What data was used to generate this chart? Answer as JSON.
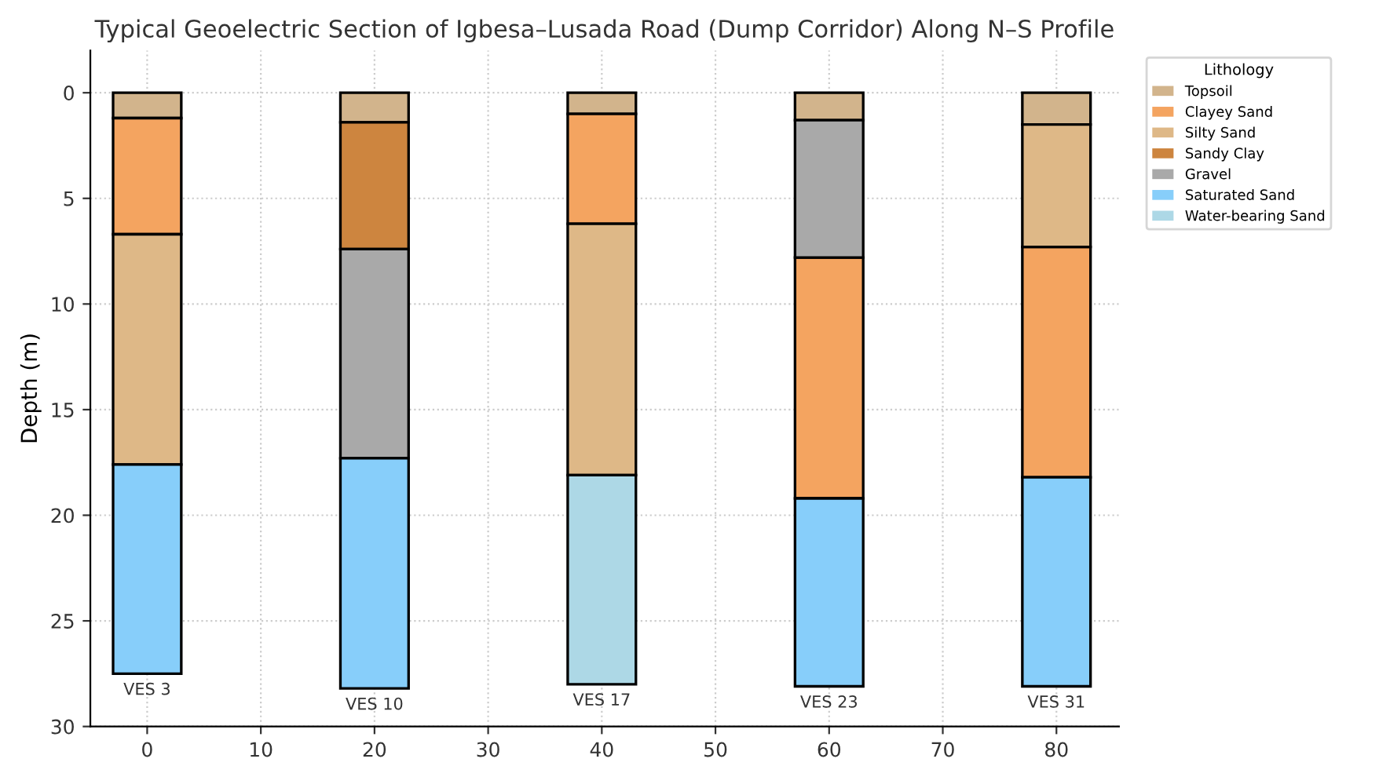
{
  "chart_data": {
    "type": "bar",
    "title": "Typical Geoelectric Section of Igbesa–Lusada Road (Dump Corridor) Along N–S Profile",
    "ylabel": "Depth (m)",
    "legend_title": "Lithology",
    "x": [
      0,
      20,
      40,
      60,
      80
    ],
    "series": [
      {
        "name": "Topsoil",
        "color": "#d2b48c",
        "base": [
          0,
          0,
          0,
          0,
          0
        ],
        "values": [
          1.2,
          1.4,
          1.0,
          1.3,
          1.5
        ]
      },
      {
        "name": "Clayey Sand",
        "color": "#f4a460",
        "base": [
          1.2,
          null,
          1.0,
          7.8,
          7.3
        ],
        "values": [
          5.5,
          null,
          5.2,
          11.4,
          10.9
        ]
      },
      {
        "name": "Silty Sand",
        "color": "#deb887",
        "base": [
          6.7,
          null,
          6.2,
          null,
          1.5
        ],
        "values": [
          10.9,
          null,
          11.9,
          null,
          5.8
        ]
      },
      {
        "name": "Sandy Clay",
        "color": "#cd853f",
        "base": [
          null,
          1.4,
          null,
          null,
          null
        ],
        "values": [
          null,
          6.0,
          null,
          null,
          null
        ]
      },
      {
        "name": "Gravel",
        "color": "#a9a9a9",
        "base": [
          null,
          7.4,
          null,
          1.3,
          null
        ],
        "values": [
          null,
          9.9,
          null,
          6.5,
          null
        ]
      },
      {
        "name": "Saturated Sand",
        "color": "#87cefa",
        "base": [
          17.6,
          17.3,
          null,
          19.2,
          18.2
        ],
        "values": [
          9.9,
          10.9,
          null,
          8.9,
          9.9
        ]
      },
      {
        "name": "Water-bearing Sand",
        "color": "#add8e6",
        "base": [
          null,
          null,
          18.1,
          null,
          null
        ],
        "values": [
          null,
          null,
          9.9,
          null,
          null
        ]
      }
    ],
    "annotations": [
      {
        "text": "VES 3",
        "x": 0,
        "y": 27.5
      },
      {
        "text": "VES 10",
        "x": 20,
        "y": 28.2
      },
      {
        "text": "VES 17",
        "x": 40,
        "y": 28.0
      },
      {
        "text": "VES 23",
        "x": 60,
        "y": 28.1
      },
      {
        "text": "VES 31",
        "x": 80,
        "y": 28.1
      }
    ],
    "xlim": [
      -5,
      85.5
    ],
    "xticks": [
      0,
      10,
      20,
      30,
      40,
      50,
      60,
      70,
      80
    ],
    "ylim": [
      30,
      -2
    ],
    "yticks": [
      0,
      5,
      10,
      15,
      20,
      25,
      30
    ],
    "grid": true,
    "legend": "top right"
  }
}
